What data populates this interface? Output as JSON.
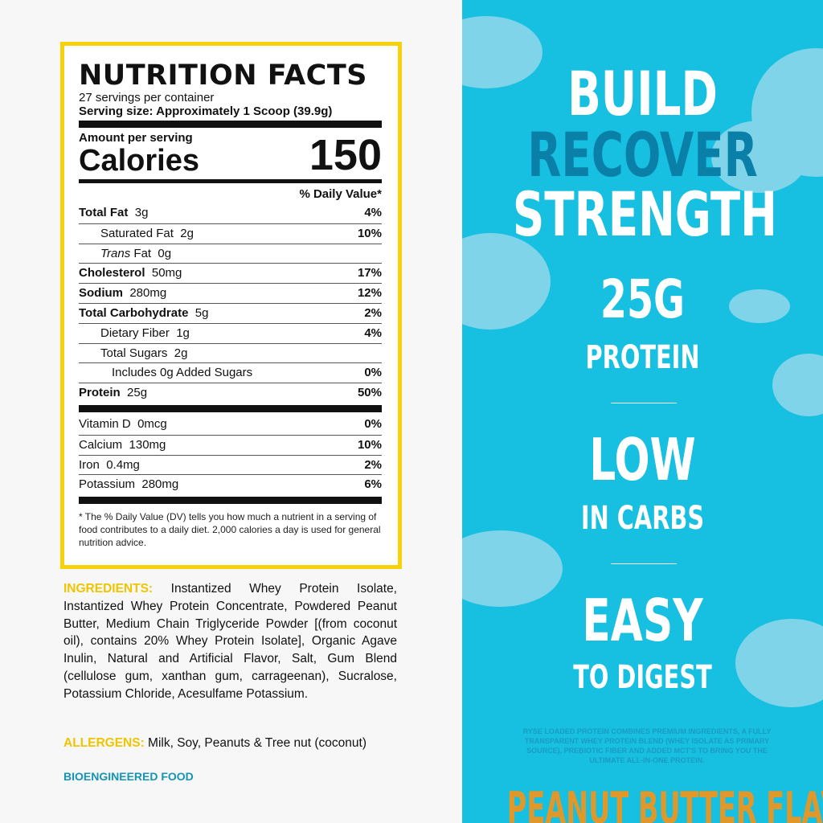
{
  "label": {
    "title": "NUTRITION FACTS",
    "servings": "27 servings per container",
    "serving_size": "Serving size: Approximately 1 Scoop (39.9g)",
    "amount": "Amount per serving",
    "calories_label": "Calories",
    "calories": "150",
    "dv_header": "% Daily Value*",
    "rows": [
      {
        "name": "Total Fat",
        "amt": "3g",
        "dv": "4%",
        "bold": true,
        "indent": 0
      },
      {
        "name": "Saturated Fat",
        "amt": "2g",
        "dv": "10%",
        "bold": false,
        "indent": 1
      },
      {
        "name": "Trans Fat",
        "amt": "0g",
        "dv": "",
        "bold": false,
        "indent": 1
      },
      {
        "name": "Cholesterol",
        "amt": "50mg",
        "dv": "17%",
        "bold": true,
        "indent": 0
      },
      {
        "name": "Sodium",
        "amt": "280mg",
        "dv": "12%",
        "bold": true,
        "indent": 0
      },
      {
        "name": "Total Carbohydrate",
        "amt": "5g",
        "dv": "2%",
        "bold": true,
        "indent": 0
      },
      {
        "name": "Dietary Fiber",
        "amt": "1g",
        "dv": "4%",
        "bold": false,
        "indent": 1
      },
      {
        "name": "Total Sugars",
        "amt": "2g",
        "dv": "",
        "bold": false,
        "indent": 1
      },
      {
        "name": "Includes 0g Added Sugars",
        "amt": "",
        "dv": "0%",
        "bold": false,
        "indent": 2
      },
      {
        "name": "Protein",
        "amt": "25g",
        "dv": "50%",
        "bold": true,
        "indent": 0
      }
    ],
    "vitamins": [
      {
        "name": "Vitamin D",
        "amt": "0mcg",
        "dv": "0%"
      },
      {
        "name": "Calcium",
        "amt": "130mg",
        "dv": "10%"
      },
      {
        "name": "Iron",
        "amt": "0.4mg",
        "dv": "2%"
      },
      {
        "name": "Potassium",
        "amt": "280mg",
        "dv": "6%"
      }
    ],
    "footnote": "* The % Daily Value (DV) tells you how much a nutrient in a serving of food contributes to a daily diet. 2,000 calories a day is used for general nutrition advice."
  },
  "ingredients": {
    "label": "INGREDIENTS:",
    "text": " Instantized Whey Protein Isolate, Instantized Whey Protein Concentrate, Powdered Peanut Butter, Medium Chain Triglyceride Powder [(from coconut oil), contains 20% Whey Protein Isolate], Organic Agave Inulin, Natural and Artificial Flavor, Salt, Gum Blend (cellulose gum, xanthan gum, carrageenan), Sucralose, Potassium Chloride, Acesulfame Potassium."
  },
  "allergens": {
    "label": "ALLERGENS:",
    "text": " Milk, Soy, Peanuts & Tree nut (coconut)"
  },
  "bioengineered": "BIOENGINEERED FOOD",
  "promo": {
    "build": "BUILD",
    "recover": "RECOVER",
    "strength": "STRENGTH",
    "protein_big": "25G",
    "protein_small": "PROTEIN",
    "low_big": "LOW",
    "low_small": "IN CARBS",
    "easy_big": "EASY",
    "easy_small": "TO DIGEST",
    "blurb": "RYSE LOADED PROTEIN COMBINES PREMIUM INGREDIENTS, A FULLY TRANSPARENT WHEY PROTEIN BLEND (WHEY ISOLATE AS PRIMARY SOURCE), PREBIOTIC FIBER AND ADDED MCT'S TO BRING YOU THE ULTIMATE ALL-IN-ONE PROTEIN.",
    "flavor": "PEANUT BUTTER FLAVOR"
  },
  "colors": {
    "accent_yellow": "#f5d20a",
    "sky": "#17bfe0",
    "recover": "#0a7fa8",
    "bio": "#1594b4"
  }
}
